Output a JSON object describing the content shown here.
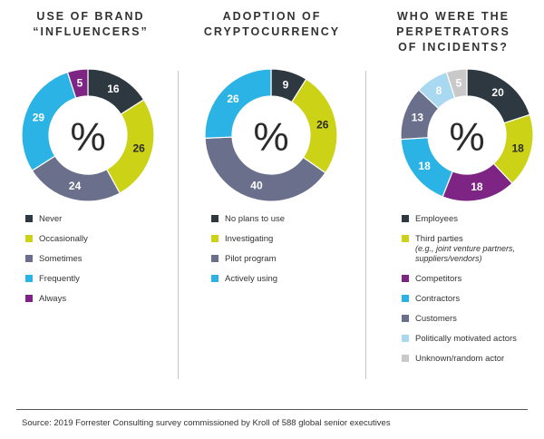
{
  "chart_data": [
    {
      "type": "donut",
      "title_lines": [
        "USE OF BRAND",
        "“INFLUENCERS”"
      ],
      "center_label": "%",
      "slices": [
        {
          "label": "Never",
          "value": 16,
          "color": "#2e3840"
        },
        {
          "label": "Occasionally",
          "value": 26,
          "color": "#ccd317"
        },
        {
          "label": "Sometimes",
          "value": 24,
          "color": "#6a6f8c"
        },
        {
          "label": "Frequently",
          "value": 29,
          "color": "#2ab3e4"
        },
        {
          "label": "Always",
          "value": 5,
          "color": "#7d2484"
        }
      ]
    },
    {
      "type": "donut",
      "title_lines": [
        "ADOPTION OF",
        "CRYPTOCURRENCY"
      ],
      "center_label": "%",
      "slices": [
        {
          "label": "No plans to use",
          "value": 9,
          "color": "#2e3840"
        },
        {
          "label": "Investigating",
          "value": 26,
          "color": "#ccd317"
        },
        {
          "label": "Pilot program",
          "value": 40,
          "color": "#6a6f8c"
        },
        {
          "label": "Actively using",
          "value": 26,
          "color": "#2ab3e4"
        }
      ]
    },
    {
      "type": "donut",
      "title_lines": [
        "WHO WERE THE",
        "PERPETRATORS",
        "OF INCIDENTS?"
      ],
      "center_label": "%",
      "slices": [
        {
          "label": "Employees",
          "value": 20,
          "color": "#2e3840"
        },
        {
          "label": "Third parties",
          "sublabel": "(e.g., joint venture partners, suppliers/vendors)",
          "value": 18,
          "color": "#ccd317"
        },
        {
          "label": "Competitors",
          "value": 18,
          "color": "#7d2484"
        },
        {
          "label": "Contractors",
          "value": 18,
          "color": "#2ab3e4"
        },
        {
          "label": "Customers",
          "value": 13,
          "color": "#6a6f8c"
        },
        {
          "label": "Politically motivated actors",
          "value": 8,
          "color": "#a9d8f1"
        },
        {
          "label": "Unknown/random actor",
          "value": 5,
          "color": "#c9c9c9"
        }
      ]
    }
  ],
  "source": "Source: 2019 Forrester Consulting survey commissioned by Kroll of 588 global senior executives"
}
